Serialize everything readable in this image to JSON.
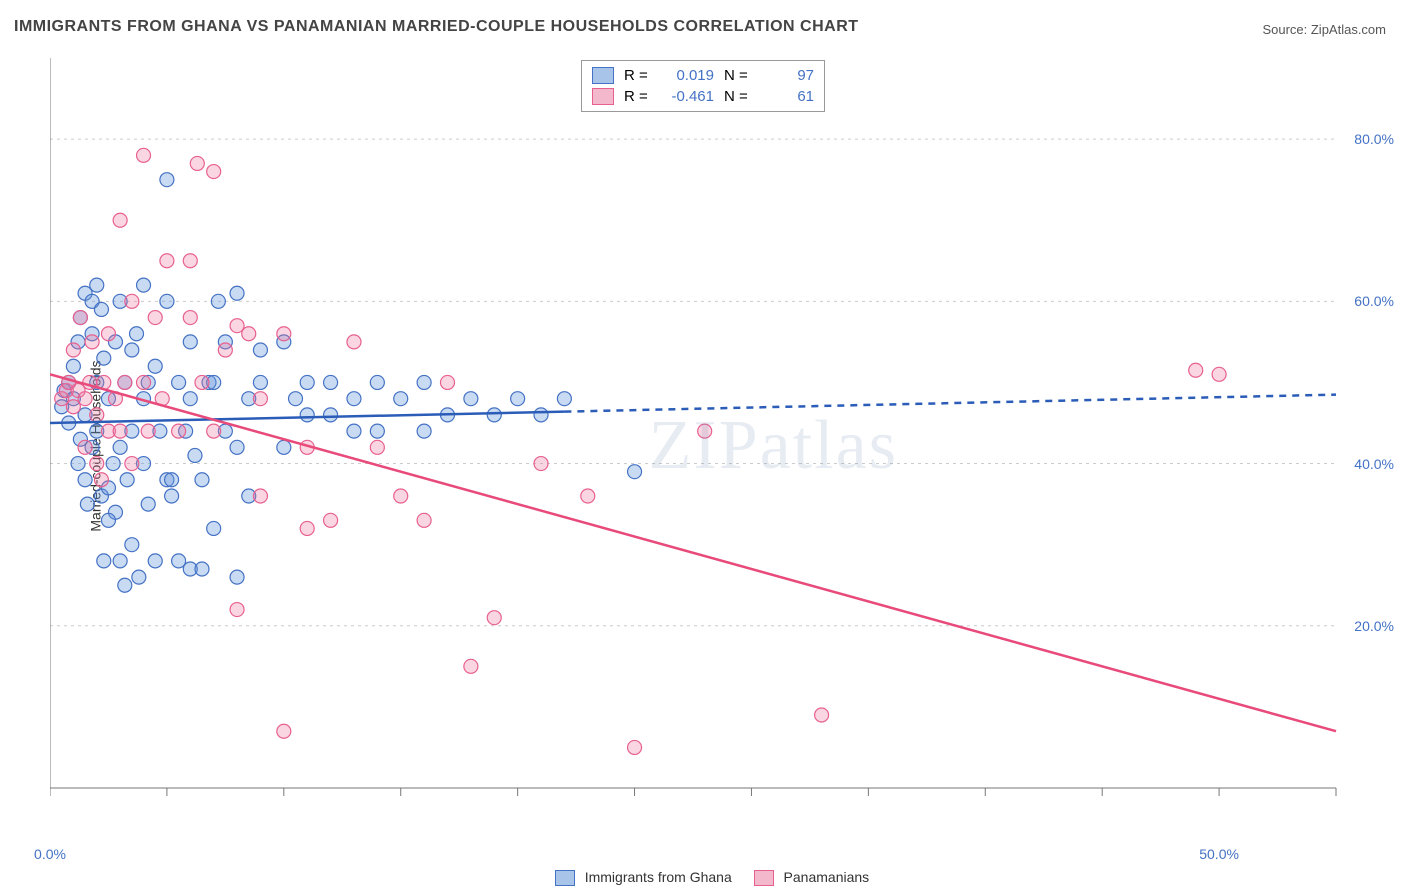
{
  "title": "IMMIGRANTS FROM GHANA VS PANAMANIAN MARRIED-COUPLE HOUSEHOLDS CORRELATION CHART",
  "source_label": "Source: ",
  "source_name": "ZipAtlas.com",
  "ylabel": "Married-couple Households",
  "watermark": "ZIPatlas",
  "chart": {
    "type": "scatter",
    "background_color": "#ffffff",
    "grid_color": "#cccccc",
    "grid_dash": "3,4",
    "axis_color": "#777777",
    "xlim": [
      0,
      55
    ],
    "ylim": [
      0,
      90
    ],
    "x_tick_step": 5,
    "y_gridlines": [
      20,
      40,
      60,
      80
    ],
    "y_tick_labels": [
      "20.0%",
      "40.0%",
      "60.0%",
      "80.0%"
    ],
    "x_tick_labels": {
      "0": "0.0%",
      "50": "50.0%"
    },
    "marker_radius": 7,
    "marker_stroke_width": 1.2,
    "series": [
      {
        "name": "Immigrants from Ghana",
        "fill_color": "rgba(100, 150, 220, 0.35)",
        "stroke_color": "#4472c4",
        "swatch_fill": "#a8c4e8",
        "swatch_stroke": "#4472c4",
        "R": "0.019",
        "N": "97",
        "trend": {
          "x1": 0,
          "y1": 45.0,
          "x2": 55,
          "y2": 48.5,
          "solid_until_x": 22,
          "stroke": "#2a5cb8",
          "stroke_width": 2.5
        },
        "points": [
          [
            0.5,
            47
          ],
          [
            0.6,
            49
          ],
          [
            0.8,
            45
          ],
          [
            0.8,
            50
          ],
          [
            1,
            48
          ],
          [
            1,
            52
          ],
          [
            1.2,
            55
          ],
          [
            1.2,
            40
          ],
          [
            1.3,
            58
          ],
          [
            1.3,
            43
          ],
          [
            1.5,
            61
          ],
          [
            1.5,
            38
          ],
          [
            1.6,
            35
          ],
          [
            1.8,
            60
          ],
          [
            1.8,
            56
          ],
          [
            2,
            62
          ],
          [
            2,
            44
          ],
          [
            2,
            50
          ],
          [
            2.2,
            59
          ],
          [
            2.2,
            36
          ],
          [
            2.3,
            28
          ],
          [
            2.3,
            53
          ],
          [
            2.5,
            37
          ],
          [
            2.5,
            48
          ],
          [
            2.7,
            40
          ],
          [
            2.8,
            34
          ],
          [
            2.8,
            55
          ],
          [
            3,
            28
          ],
          [
            3,
            42
          ],
          [
            3,
            60
          ],
          [
            3.2,
            25
          ],
          [
            3.2,
            50
          ],
          [
            3.3,
            38
          ],
          [
            3.5,
            44
          ],
          [
            3.5,
            30
          ],
          [
            3.7,
            56
          ],
          [
            3.8,
            26
          ],
          [
            4,
            48
          ],
          [
            4,
            40
          ],
          [
            4,
            62
          ],
          [
            4.2,
            50
          ],
          [
            4.2,
            35
          ],
          [
            4.5,
            28
          ],
          [
            4.5,
            52
          ],
          [
            4.7,
            44
          ],
          [
            5,
            38
          ],
          [
            5,
            60
          ],
          [
            5,
            75
          ],
          [
            5.2,
            38
          ],
          [
            5.2,
            36
          ],
          [
            5.5,
            28
          ],
          [
            5.5,
            50
          ],
          [
            5.8,
            44
          ],
          [
            6,
            27
          ],
          [
            6,
            55
          ],
          [
            6,
            48
          ],
          [
            6.2,
            41
          ],
          [
            6.5,
            27
          ],
          [
            6.5,
            38
          ],
          [
            6.8,
            50
          ],
          [
            7,
            32
          ],
          [
            7,
            50
          ],
          [
            7.2,
            60
          ],
          [
            7.5,
            55
          ],
          [
            7.5,
            44
          ],
          [
            8,
            26
          ],
          [
            8,
            42
          ],
          [
            8,
            61
          ],
          [
            8.5,
            48
          ],
          [
            8.5,
            36
          ],
          [
            9,
            50
          ],
          [
            9,
            54
          ],
          [
            10,
            55
          ],
          [
            10,
            42
          ],
          [
            10.5,
            48
          ],
          [
            11,
            46
          ],
          [
            11,
            50
          ],
          [
            12,
            46
          ],
          [
            12,
            50
          ],
          [
            13,
            44
          ],
          [
            13,
            48
          ],
          [
            14,
            50
          ],
          [
            14,
            44
          ],
          [
            15,
            48
          ],
          [
            16,
            50
          ],
          [
            16,
            44
          ],
          [
            17,
            46
          ],
          [
            18,
            48
          ],
          [
            19,
            46
          ],
          [
            20,
            48
          ],
          [
            21,
            46
          ],
          [
            22,
            48
          ],
          [
            25,
            39
          ],
          [
            1.5,
            46
          ],
          [
            1.8,
            42
          ],
          [
            2.5,
            33
          ],
          [
            3.5,
            54
          ]
        ]
      },
      {
        "name": "Panamanians",
        "fill_color": "rgba(235, 120, 160, 0.30)",
        "stroke_color": "#e86090",
        "swatch_fill": "#f4b8cc",
        "swatch_stroke": "#e86090",
        "R": "-0.461",
        "N": "61",
        "trend": {
          "x1": 0,
          "y1": 51.0,
          "x2": 55,
          "y2": 7.0,
          "solid_until_x": 55,
          "stroke": "#e84a7a",
          "stroke_width": 2.5
        },
        "points": [
          [
            0.5,
            48
          ],
          [
            0.7,
            49
          ],
          [
            0.8,
            50
          ],
          [
            1,
            47
          ],
          [
            1,
            54
          ],
          [
            1.2,
            49
          ],
          [
            1.3,
            58
          ],
          [
            1.5,
            48
          ],
          [
            1.5,
            42
          ],
          [
            1.7,
            50
          ],
          [
            1.8,
            55
          ],
          [
            2,
            46
          ],
          [
            2,
            40
          ],
          [
            2.2,
            38
          ],
          [
            2.3,
            50
          ],
          [
            2.5,
            56
          ],
          [
            2.5,
            44
          ],
          [
            2.8,
            48
          ],
          [
            3,
            70
          ],
          [
            3,
            44
          ],
          [
            3.2,
            50
          ],
          [
            3.5,
            60
          ],
          [
            3.5,
            40
          ],
          [
            4,
            78
          ],
          [
            4,
            50
          ],
          [
            4.2,
            44
          ],
          [
            4.5,
            58
          ],
          [
            4.8,
            48
          ],
          [
            5,
            65
          ],
          [
            5.5,
            44
          ],
          [
            6,
            58
          ],
          [
            6,
            65
          ],
          [
            6.3,
            77
          ],
          [
            6.5,
            50
          ],
          [
            7,
            44
          ],
          [
            7,
            76
          ],
          [
            7.5,
            54
          ],
          [
            8,
            57
          ],
          [
            8,
            22
          ],
          [
            8.5,
            56
          ],
          [
            9,
            36
          ],
          [
            9,
            48
          ],
          [
            10,
            56
          ],
          [
            10,
            7
          ],
          [
            11,
            32
          ],
          [
            11,
            42
          ],
          [
            12,
            33
          ],
          [
            13,
            55
          ],
          [
            14,
            42
          ],
          [
            15,
            36
          ],
          [
            16,
            33
          ],
          [
            17,
            50
          ],
          [
            18,
            15
          ],
          [
            19,
            21
          ],
          [
            21,
            40
          ],
          [
            23,
            36
          ],
          [
            25,
            5
          ],
          [
            28,
            44
          ],
          [
            33,
            9
          ],
          [
            49,
            51.5
          ],
          [
            50,
            51
          ]
        ]
      }
    ],
    "legend_bottom": [
      {
        "label": "Immigrants from Ghana",
        "fill": "#a8c4e8",
        "stroke": "#4472c4"
      },
      {
        "label": "Panamanians",
        "fill": "#f4b8cc",
        "stroke": "#e86090"
      }
    ]
  }
}
